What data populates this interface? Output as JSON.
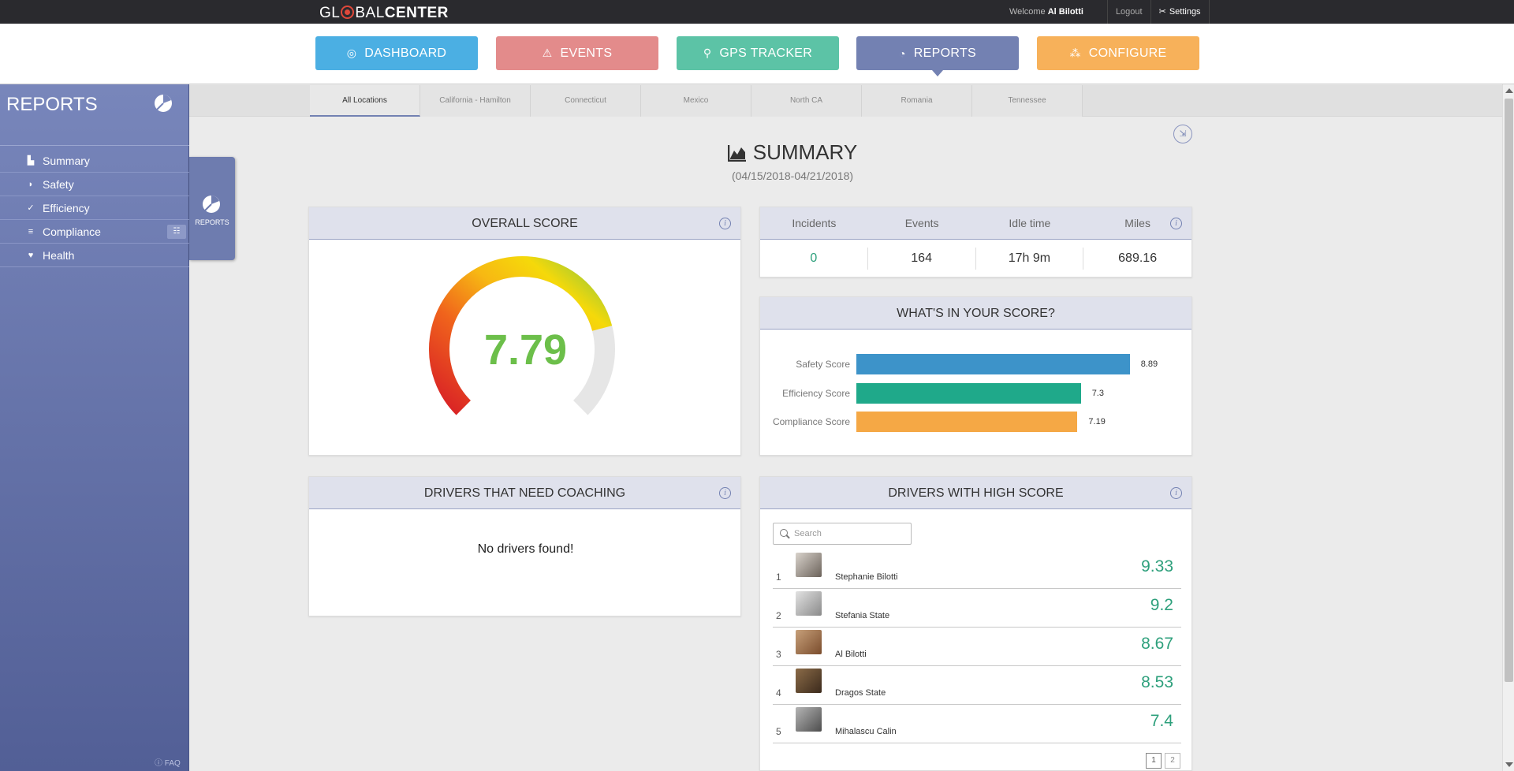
{
  "brand": {
    "part1": "GL",
    "part2": "BAL",
    "part3": "CENTER"
  },
  "topbar": {
    "welcome_prefix": "Welcome",
    "user": "Al Bilotti",
    "logout": "Logout",
    "settings": "Settings"
  },
  "nav": {
    "dashboard": "DASHBOARD",
    "events": "EVENTS",
    "gps": "GPS TRACKER",
    "reports": "REPORTS",
    "configure": "CONFIGURE"
  },
  "sidebar": {
    "title": "REPORTS",
    "items": [
      {
        "label": "Summary",
        "icon": "bar-chart-icon"
      },
      {
        "label": "Safety",
        "icon": "shield-icon"
      },
      {
        "label": "Efficiency",
        "icon": "check-circle-icon"
      },
      {
        "label": "Compliance",
        "icon": "compliance-icon"
      },
      {
        "label": "Health",
        "icon": "heartbeat-icon"
      }
    ],
    "faq": "FAQ",
    "tab_label": "REPORTS"
  },
  "locations": [
    "All Locations",
    "California - Hamilton",
    "Connecticut",
    "Mexico",
    "North CA",
    "Romania",
    "Tennessee"
  ],
  "summary": {
    "title": "SUMMARY",
    "range": "(04/15/2018-04/21/2018)"
  },
  "overall": {
    "title": "OVERALL SCORE",
    "value": "7.79",
    "gauge_max": 10
  },
  "stats": {
    "labels": [
      "Incidents",
      "Events",
      "Idle time",
      "Miles"
    ],
    "values": [
      "0",
      "164",
      "17h 9m",
      "689.16"
    ]
  },
  "score_breakdown": {
    "title": "WHAT'S IN YOUR SCORE?",
    "rows": [
      {
        "label": "Safety Score",
        "value": "8.89",
        "color": "#3d93c9"
      },
      {
        "label": "Efficiency Score",
        "value": "7.3",
        "color": "#1fa98a"
      },
      {
        "label": "Compliance Score",
        "value": "7.19",
        "color": "#f5a845"
      }
    ]
  },
  "coaching": {
    "title": "DRIVERS THAT NEED COACHING",
    "empty": "No drivers found!"
  },
  "high": {
    "title": "DRIVERS WITH HIGH SCORE",
    "search_placeholder": "Search",
    "drivers": [
      {
        "rank": "1",
        "name": "Stephanie Bilotti",
        "score": "9.33"
      },
      {
        "rank": "2",
        "name": "Stefania State",
        "score": "9.2"
      },
      {
        "rank": "3",
        "name": "Al Bilotti",
        "score": "8.67"
      },
      {
        "rank": "4",
        "name": "Dragos State",
        "score": "8.53"
      },
      {
        "rank": "5",
        "name": "Mihalascu Calin",
        "score": "7.4"
      }
    ],
    "pages": [
      "1",
      "2"
    ]
  }
}
